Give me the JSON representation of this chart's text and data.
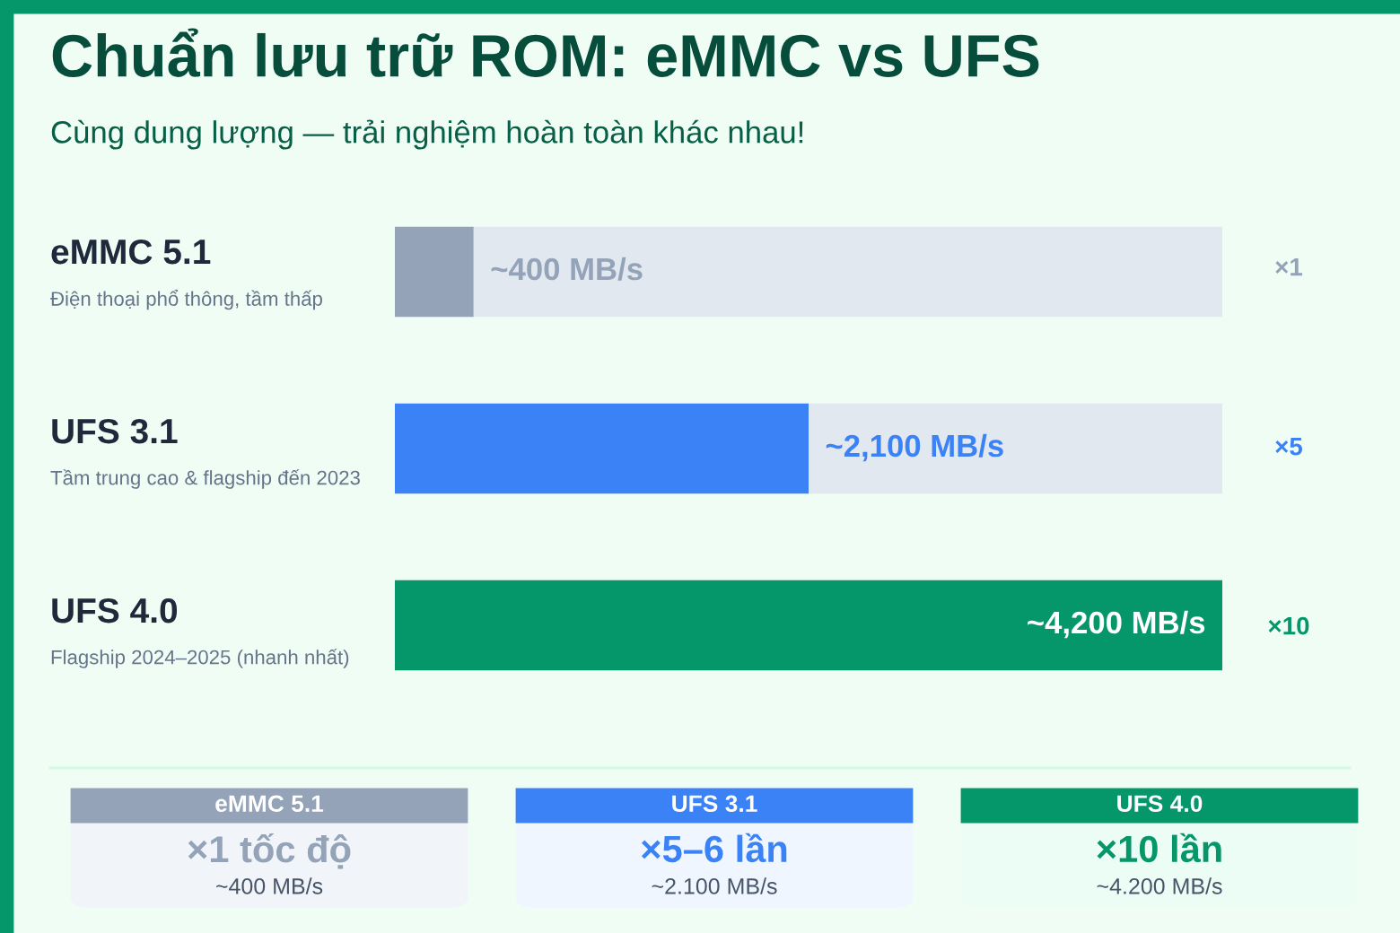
{
  "chart_data": {
    "type": "bar",
    "orientation": "horizontal",
    "stacked": true,
    "title": "Chuẩn lưu trữ ROM: eMMC vs UFS",
    "subtitle": "Cùng dung lượng — trải nghiệm hoàn toàn khác nhau!",
    "categories": [
      "eMMC 5.1",
      "UFS 3.1",
      "UFS 4.0"
    ],
    "series": [
      {
        "colors": [
          "#94a3b8",
          "#3b82f6",
          "#059669"
        ],
        "values": [
          400,
          2100,
          4200
        ],
        "value_labels": [
          "~400 MB/s",
          "~2,100 MB/s",
          "~4,200 MB/s"
        ]
      },
      {
        "color": "#e2e8f0",
        "values": [
          3800,
          2100,
          null
        ]
      }
    ],
    "annotations": [
      "Điện thoại phổ thông, tầm thấp",
      "Tầm trung cao & flagship đến 2023",
      "Flagship 2024–2025 (nhanh nhất)",
      "×1",
      "×5",
      "×10",
      "eMMC 5.1",
      "×1 tốc độ",
      "~400 MB/s",
      "UFS 3.1",
      "×5–6 lần",
      "~2.100 MB/s",
      "UFS 4.0",
      "×10 lần",
      "~4.200 MB/s"
    ]
  }
}
